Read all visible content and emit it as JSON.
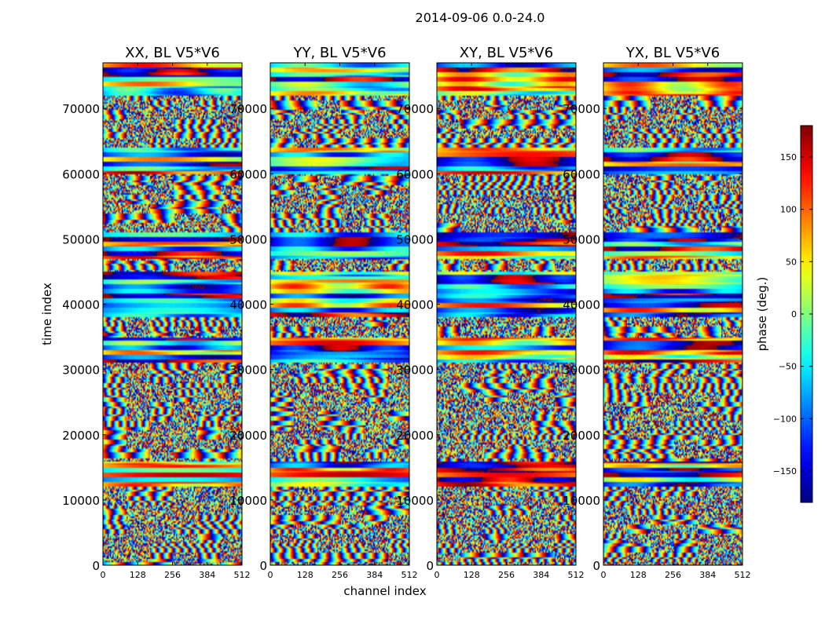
{
  "figure_title": "2014-09-06 0.0-24.0",
  "chart_data": {
    "type": "heatmap",
    "title": "2014-09-06 0.0-24.0",
    "xlabel": "channel index",
    "ylabel": "time index",
    "xlim": [
      0,
      512
    ],
    "ylim": [
      0,
      77000
    ],
    "xticks": [
      0,
      128,
      256,
      384,
      512
    ],
    "yticks": [
      0,
      10000,
      20000,
      30000,
      40000,
      50000,
      60000,
      70000
    ],
    "panels": [
      {
        "title": "XX, BL V5*V6",
        "polarization": "XX"
      },
      {
        "title": "YY, BL V5*V6",
        "polarization": "YY"
      },
      {
        "title": "XY, BL V5*V6",
        "polarization": "XY"
      },
      {
        "title": "YX, BL V5*V6",
        "polarization": "YX"
      }
    ],
    "colorbar": {
      "label": "phase (deg.)",
      "range": [
        -180,
        180
      ],
      "ticks": [
        -150,
        -100,
        -50,
        0,
        50,
        100,
        150
      ],
      "tick_labels": [
        "−150",
        "−100",
        "−50",
        "0",
        "50",
        "100",
        "150"
      ],
      "colormap": "jet"
    },
    "coherent_bands": [
      {
        "start": 12000,
        "end": 16000
      },
      {
        "start": 31000,
        "end": 35000
      },
      {
        "start": 38000,
        "end": 45000
      },
      {
        "start": 47000,
        "end": 51000
      },
      {
        "start": 60000,
        "end": 64000
      },
      {
        "start": 72000,
        "end": 77000
      }
    ]
  }
}
